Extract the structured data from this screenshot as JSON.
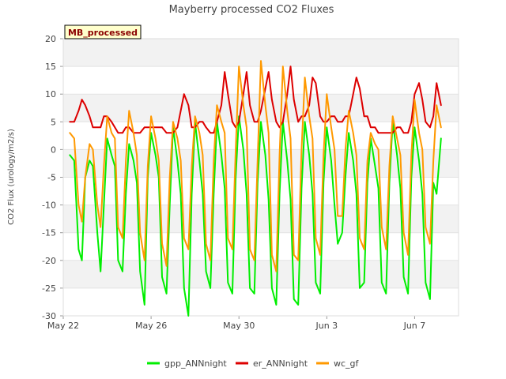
{
  "chart_data": {
    "type": "line",
    "title": "Mayberry processed CO2 Fluxes",
    "ylabel": "CO2 Flux (urology/m2/s)",
    "xlabel": "",
    "badge": "MB_processed",
    "ylim": [
      -30,
      20
    ],
    "xlim": [
      0,
      18
    ],
    "yticks": [
      20,
      15,
      10,
      5,
      0,
      -5,
      -10,
      -15,
      -20,
      -25,
      -30
    ],
    "xticks": [
      {
        "value": 0,
        "label": "May 22"
      },
      {
        "value": 4,
        "label": "May 26"
      },
      {
        "value": 8,
        "label": "May 30"
      },
      {
        "value": 12,
        "label": "Jun 3"
      },
      {
        "value": 16,
        "label": "Jun 7"
      }
    ],
    "x_unit": "days since May 22 00:00",
    "legend_position": "bottom-center",
    "grid": true,
    "series": [
      {
        "name": "gpp_ANNnight",
        "color": "#00ee00",
        "x": [
          0.3,
          0.5,
          0.7,
          0.85,
          1.0,
          1.2,
          1.35,
          1.55,
          1.7,
          1.85,
          2.0,
          2.2,
          2.35,
          2.5,
          2.7,
          2.85,
          3.0,
          3.2,
          3.35,
          3.5,
          3.7,
          3.85,
          4.0,
          4.2,
          4.35,
          4.5,
          4.7,
          4.85,
          5.0,
          5.2,
          5.35,
          5.5,
          5.7,
          5.85,
          6.0,
          6.2,
          6.35,
          6.5,
          6.7,
          6.85,
          7.0,
          7.2,
          7.35,
          7.5,
          7.7,
          7.85,
          8.0,
          8.2,
          8.35,
          8.5,
          8.7,
          8.85,
          9.0,
          9.2,
          9.35,
          9.5,
          9.7,
          9.85,
          10.0,
          10.2,
          10.35,
          10.5,
          10.7,
          10.85,
          11.0,
          11.2,
          11.35,
          11.5,
          11.7,
          11.85,
          12.0,
          12.2,
          12.35,
          12.5,
          12.7,
          12.85,
          13.0,
          13.2,
          13.35,
          13.5,
          13.7,
          13.85,
          14.0,
          14.2,
          14.35,
          14.5,
          14.7,
          14.85,
          15.0,
          15.2,
          15.35,
          15.5,
          15.7,
          15.85,
          16.0,
          16.2,
          16.35,
          16.5,
          16.7,
          16.85,
          17.0,
          17.2
        ],
        "y": [
          -1,
          -2,
          -18,
          -20,
          -5,
          -2,
          -3,
          -15,
          -22,
          -10,
          2,
          -1,
          -3,
          -20,
          -22,
          -8,
          1,
          -2,
          -6,
          -22,
          -28,
          -5,
          3,
          -1,
          -5,
          -23,
          -26,
          -10,
          4,
          -2,
          -8,
          -25,
          -30,
          -8,
          5,
          -2,
          -8,
          -22,
          -25,
          -8,
          5,
          -1,
          -7,
          -24,
          -26,
          -5,
          6,
          0,
          -8,
          -25,
          -26,
          -6,
          5,
          -1,
          -9,
          -25,
          -28,
          -8,
          5,
          -2,
          -9,
          -27,
          -28,
          -7,
          5,
          -1,
          -8,
          -24,
          -26,
          -6,
          4,
          -2,
          -10,
          -17,
          -15,
          -5,
          3,
          -2,
          -8,
          -25,
          -24,
          -6,
          2,
          -3,
          -7,
          -24,
          -26,
          -6,
          5,
          -1,
          -7,
          -23,
          -26,
          -5,
          4,
          -2,
          -8,
          -24,
          -27,
          -6,
          -8,
          2
        ]
      },
      {
        "name": "er_ANNnight",
        "color": "#dd0000",
        "x": [
          0.3,
          0.5,
          0.7,
          0.85,
          1.0,
          1.2,
          1.35,
          1.55,
          1.7,
          1.85,
          2.0,
          2.2,
          2.35,
          2.5,
          2.7,
          2.85,
          3.0,
          3.2,
          3.35,
          3.5,
          3.7,
          3.85,
          4.0,
          4.2,
          4.35,
          4.5,
          4.7,
          4.85,
          5.0,
          5.2,
          5.35,
          5.5,
          5.7,
          5.85,
          6.0,
          6.2,
          6.35,
          6.5,
          6.7,
          6.85,
          7.0,
          7.2,
          7.35,
          7.5,
          7.7,
          7.85,
          8.0,
          8.2,
          8.35,
          8.5,
          8.7,
          8.85,
          9.0,
          9.2,
          9.35,
          9.5,
          9.7,
          9.85,
          10.0,
          10.2,
          10.35,
          10.5,
          10.7,
          10.85,
          11.0,
          11.2,
          11.35,
          11.5,
          11.7,
          11.85,
          12.0,
          12.2,
          12.35,
          12.5,
          12.7,
          12.85,
          13.0,
          13.2,
          13.35,
          13.5,
          13.7,
          13.85,
          14.0,
          14.2,
          14.35,
          14.5,
          14.7,
          14.85,
          15.0,
          15.2,
          15.35,
          15.5,
          15.7,
          15.85,
          16.0,
          16.2,
          16.35,
          16.5,
          16.7,
          16.85,
          17.0,
          17.2
        ],
        "y": [
          5,
          5,
          7,
          9,
          8,
          6,
          4,
          4,
          4,
          6,
          6,
          5,
          4,
          3,
          3,
          4,
          4,
          3,
          3,
          3,
          4,
          4,
          4,
          4,
          4,
          4,
          3,
          3,
          3,
          4,
          7,
          10,
          8,
          4,
          4,
          5,
          5,
          4,
          3,
          3,
          5,
          8,
          14,
          10,
          5,
          4,
          5,
          10,
          14,
          8,
          5,
          5,
          7,
          11,
          14,
          9,
          5,
          4,
          5,
          10,
          15,
          9,
          5,
          6,
          6,
          8,
          13,
          12,
          6,
          5,
          5,
          6,
          6,
          5,
          5,
          6,
          6,
          10,
          13,
          11,
          6,
          6,
          4,
          4,
          3,
          3,
          3,
          3,
          3,
          4,
          4,
          3,
          3,
          5,
          10,
          12,
          9,
          5,
          4,
          6,
          12,
          8
        ]
      },
      {
        "name": "wc_gf",
        "color": "#ff9900",
        "x": [
          0.3,
          0.5,
          0.7,
          0.85,
          1.0,
          1.2,
          1.35,
          1.55,
          1.7,
          1.85,
          2.0,
          2.2,
          2.35,
          2.5,
          2.7,
          2.85,
          3.0,
          3.2,
          3.35,
          3.5,
          3.7,
          3.85,
          4.0,
          4.2,
          4.35,
          4.5,
          4.7,
          4.85,
          5.0,
          5.2,
          5.35,
          5.5,
          5.7,
          5.85,
          6.0,
          6.2,
          6.35,
          6.5,
          6.7,
          6.85,
          7.0,
          7.2,
          7.35,
          7.5,
          7.7,
          7.85,
          8.0,
          8.2,
          8.35,
          8.5,
          8.7,
          8.85,
          9.0,
          9.2,
          9.35,
          9.5,
          9.7,
          9.85,
          10.0,
          10.2,
          10.35,
          10.5,
          10.7,
          10.85,
          11.0,
          11.2,
          11.35,
          11.5,
          11.7,
          11.85,
          12.0,
          12.2,
          12.35,
          12.5,
          12.7,
          12.85,
          13.0,
          13.2,
          13.35,
          13.5,
          13.7,
          13.85,
          14.0,
          14.2,
          14.35,
          14.5,
          14.7,
          14.85,
          15.0,
          15.2,
          15.35,
          15.5,
          15.7,
          15.85,
          16.0,
          16.2,
          16.35,
          16.5,
          16.7,
          16.85,
          17.0,
          17.2
        ],
        "y": [
          3,
          2,
          -10,
          -13,
          -5,
          1,
          0,
          -10,
          -14,
          -3,
          6,
          3,
          2,
          -14,
          -16,
          -2,
          7,
          3,
          -1,
          -15,
          -20,
          -3,
          6,
          2,
          -2,
          -17,
          -21,
          -5,
          5,
          2,
          -2,
          -16,
          -18,
          -3,
          6,
          3,
          -1,
          -17,
          -20,
          -2,
          8,
          5,
          3,
          -16,
          -18,
          0,
          15,
          8,
          4,
          -18,
          -20,
          -2,
          16,
          8,
          3,
          -19,
          -22,
          -1,
          15,
          7,
          2,
          -19,
          -20,
          0,
          13,
          6,
          2,
          -16,
          -19,
          -1,
          10,
          4,
          0,
          -12,
          -12,
          0,
          7,
          3,
          -1,
          -16,
          -18,
          -2,
          3,
          1,
          0,
          -14,
          -18,
          -3,
          6,
          2,
          -1,
          -15,
          -19,
          -1,
          9,
          3,
          0,
          -14,
          -17,
          -2,
          8,
          4
        ]
      }
    ]
  }
}
